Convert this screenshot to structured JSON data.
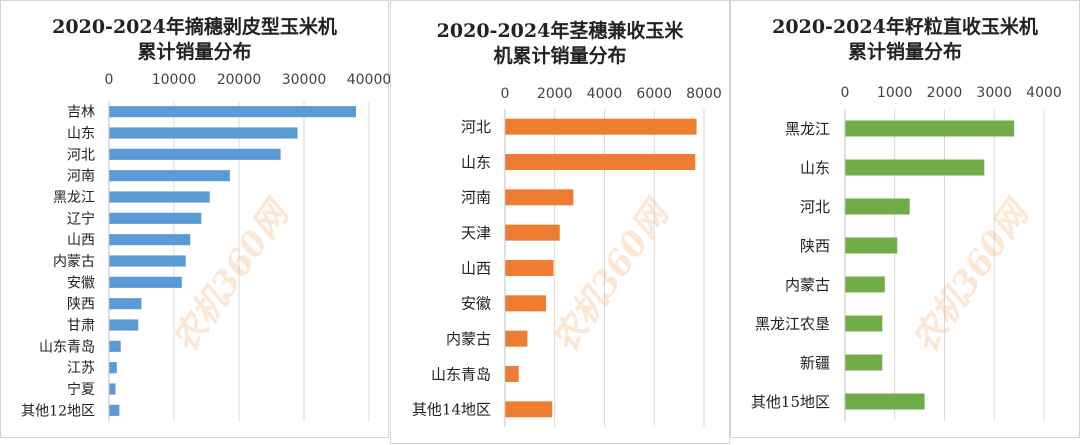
{
  "watermark_text": "农机360网",
  "chart_data": [
    {
      "type": "bar",
      "title_lines": [
        "2020-2024年摘穗剥皮型玉米机",
        "累计销量分布"
      ],
      "color": "#5b9bd5",
      "xlim": [
        0,
        40000
      ],
      "ticks": [
        0,
        10000,
        20000,
        30000,
        40000
      ],
      "tick_labels": [
        "0",
        "10000",
        "20000",
        "30000",
        "40000"
      ],
      "categories": [
        "吉林",
        "山东",
        "河北",
        "河南",
        "黑龙江",
        "辽宁",
        "山西",
        "内蒙古",
        "安徽",
        "陕西",
        "甘肃",
        "山东青岛",
        "江苏",
        "宁夏",
        "其他12地区"
      ],
      "values": [
        38000,
        29000,
        26400,
        18600,
        15500,
        14200,
        12500,
        11800,
        11200,
        5000,
        4500,
        1800,
        1200,
        1000,
        1600
      ]
    },
    {
      "type": "bar",
      "title_lines": [
        "2020-2024年茎穗兼收玉米",
        "机累计销量分布"
      ],
      "color": "#ed7d31",
      "xlim": [
        0,
        8000
      ],
      "ticks": [
        0,
        2000,
        4000,
        6000,
        8000
      ],
      "tick_labels": [
        "0",
        "2000",
        "4000",
        "6000",
        "8000"
      ],
      "categories": [
        "河北",
        "山东",
        "河南",
        "天津",
        "山西",
        "安徽",
        "内蒙古",
        "山东青岛",
        "其他14地区"
      ],
      "values": [
        7700,
        7650,
        2750,
        2200,
        1950,
        1650,
        900,
        550,
        1900
      ]
    },
    {
      "type": "bar",
      "title_lines": [
        "2020-2024年籽粒直收玉米机",
        "累计销量分布"
      ],
      "color": "#70ad47",
      "xlim": [
        0,
        4000
      ],
      "ticks": [
        0,
        1000,
        2000,
        3000,
        4000
      ],
      "tick_labels": [
        "0",
        "1000",
        "2000",
        "3000",
        "4000"
      ],
      "categories": [
        "黑龙江",
        "山东",
        "河北",
        "陕西",
        "内蒙古",
        "黑龙江农垦",
        "新疆",
        "其他15地区"
      ],
      "values": [
        3400,
        2800,
        1300,
        1050,
        800,
        750,
        750,
        1600
      ]
    }
  ]
}
